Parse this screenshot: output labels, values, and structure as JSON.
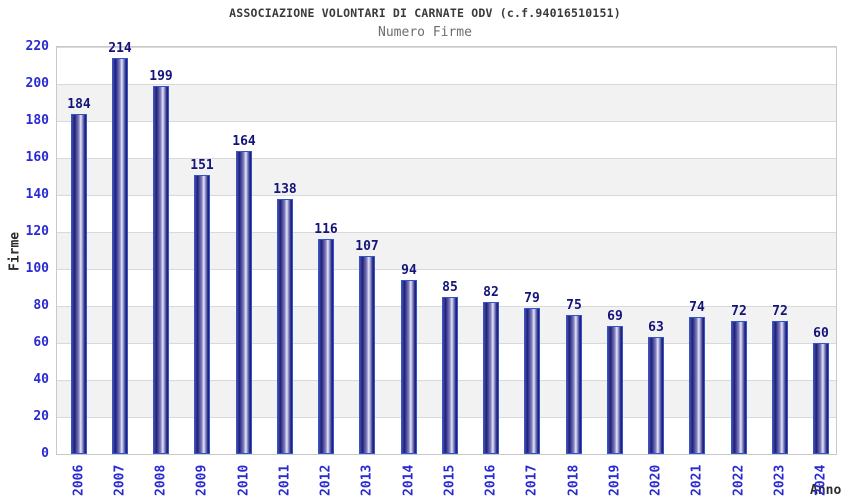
{
  "chart_data": {
    "type": "bar",
    "title": "ASSOCIAZIONE VOLONTARI DI CARNATE ODV (c.f.94016510151)",
    "subtitle": "Numero Firme",
    "xlabel": "Anno",
    "ylabel": "Firme",
    "categories": [
      "2006",
      "2007",
      "2008",
      "2009",
      "2010",
      "2011",
      "2012",
      "2013",
      "2014",
      "2015",
      "2016",
      "2017",
      "2018",
      "2019",
      "2020",
      "2021",
      "2022",
      "2023",
      "2024"
    ],
    "values": [
      184,
      214,
      199,
      151,
      164,
      138,
      116,
      107,
      94,
      85,
      82,
      79,
      75,
      69,
      63,
      74,
      72,
      72,
      60
    ],
    "ylim": [
      0,
      220
    ],
    "ytick_step": 20,
    "yticks": [
      0,
      20,
      40,
      60,
      80,
      100,
      120,
      140,
      160,
      180,
      200,
      220
    ],
    "grid": true,
    "legend": false,
    "band_striping": "horizontal alternating white/gray every 20 units",
    "colors": {
      "title": "#3a3a3a",
      "subtitle": "#6e6e6e",
      "axis_title": "#2b2b2b",
      "tick_label": "#2a2ad2",
      "value_label": "#14147a",
      "bar_border": "#2f55cf",
      "bar_dark": "#1f1f7a",
      "bar_light": "#e6e6f6",
      "band": "#f2f2f2",
      "gridline": "#d9d9d9",
      "plot_border": "#c9c9c9",
      "background": "#ffffff"
    }
  }
}
